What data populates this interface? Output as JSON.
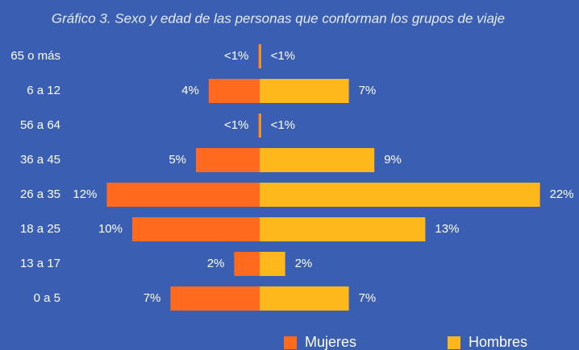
{
  "chart_data": {
    "type": "pyramid",
    "title": "Gráfico 3. Sexo y edad de las personas que conforman los grupos de viaje",
    "categories": [
      "65 o más",
      "6 a 12",
      "56 a 64",
      "36 a 45",
      "26 a 35",
      "18 a 25",
      "13 a 17",
      "0 a 5"
    ],
    "series": [
      {
        "name": "Mujeres",
        "color": "#ff6a1f",
        "values": [
          0.1,
          4,
          0.1,
          5,
          12,
          10,
          2,
          7
        ],
        "value_labels": [
          "<1%",
          "4%",
          "<1%",
          "5%",
          "12%",
          "10%",
          "2%",
          "7%"
        ]
      },
      {
        "name": "Hombres",
        "color": "#ffb81c",
        "values": [
          0.1,
          7,
          0.1,
          9,
          22,
          13,
          2,
          7
        ],
        "value_labels": [
          "<1%",
          "7%",
          "<1%",
          "9%",
          "22%",
          "13%",
          "2%",
          "7%"
        ]
      }
    ],
    "legend": "bottom"
  }
}
